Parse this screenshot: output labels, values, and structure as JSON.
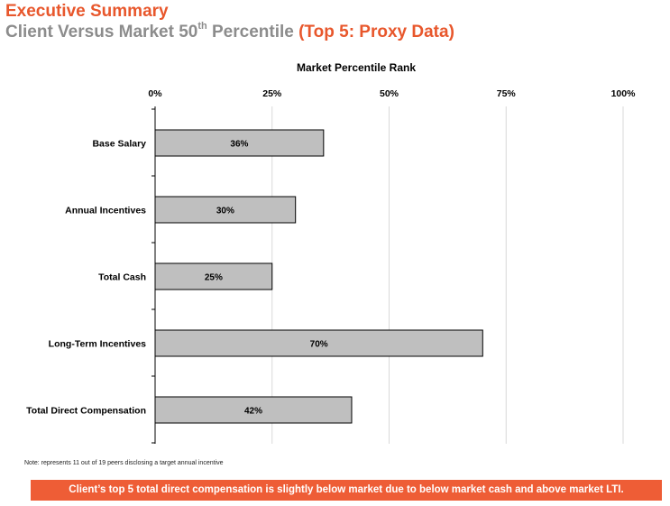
{
  "header": {
    "title": "Executive Summary",
    "subtitle_main": "Client Versus Market 50",
    "subtitle_sup": "th",
    "subtitle_rest": " Percentile ",
    "subtitle_accent": "(Top 5:  Proxy Data)"
  },
  "colors": {
    "accent": "#e8572c",
    "subtitle_gray": "#8c8c8c",
    "bar_fill": "#bfbfbf",
    "bar_stroke": "#000000",
    "grid": "#d9d9d9",
    "banner_bg": "#ee5d36"
  },
  "chart_data": {
    "type": "bar",
    "orientation": "horizontal",
    "title": "Market Percentile Rank",
    "categories": [
      "Base Salary",
      "Annual Incentives",
      "Total Cash",
      "Long-Term Incentives",
      "Total Direct Compensation"
    ],
    "values": [
      36,
      30,
      25,
      70,
      42
    ],
    "data_labels": [
      "36%",
      "30%",
      "25%",
      "70%",
      "42%"
    ],
    "xlim": [
      0,
      100
    ],
    "xticks": [
      0,
      25,
      50,
      75,
      100
    ],
    "xtick_labels": [
      "0%",
      "25%",
      "50%",
      "75%",
      "100%"
    ],
    "axis_position": "top",
    "grid": true
  },
  "footer": {
    "note": "Note:  represents 11 out of 19 peers disclosing a target annual incentive",
    "banner": "Client’s top 5 total direct compensation is slightly below market due to below market cash and above market LTI."
  }
}
